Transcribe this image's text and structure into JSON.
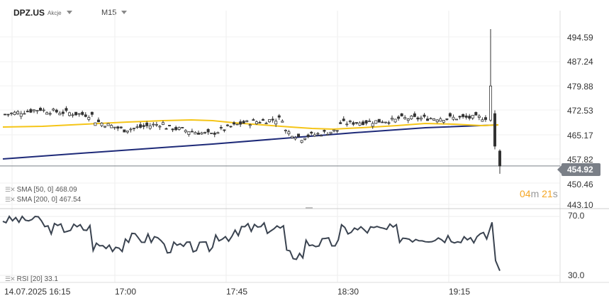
{
  "header": {
    "symbol": "DPZ.US",
    "symbol_type": "Akcje",
    "timeframe": "M15"
  },
  "price_axis": {
    "ticks": [
      "494.59",
      "487.24",
      "479.88",
      "472.53",
      "465.17",
      "457.82",
      "450.46",
      "443.10"
    ],
    "current_price": "454.92"
  },
  "countdown": {
    "minutes": "04",
    "m_unit": "m",
    "seconds": "21",
    "s_unit": "s"
  },
  "indicators": {
    "sma50": "SMA [50,  0]  468.09",
    "sma200": "SMA [200,  0]  467.54",
    "rsi": "RSI [20]  33.1"
  },
  "rsi_axis": {
    "top": "70.0",
    "bottom": "30.0"
  },
  "time_axis": {
    "ticks": [
      "14.07.2025  16:15",
      "17:00",
      "17:45",
      "18:30",
      "19:15"
    ]
  },
  "colors": {
    "sma50": "#f5c518",
    "sma200": "#1e2a78",
    "candles": "#333333",
    "rsi": "#3a4350",
    "price_line": "#7a7f87",
    "countdown": "#f5a623"
  },
  "chart_data": [
    {
      "type": "candlestick",
      "title": "DPZ.US M15",
      "ylim": [
        443.1,
        494.59
      ],
      "series": [
        {
          "name": "SMA [50, 0]",
          "value": 468.09
        },
        {
          "name": "SMA [200, 0]",
          "value": 467.54
        }
      ],
      "last_price": 454.92
    },
    {
      "type": "line",
      "title": "RSI [20]",
      "ylim": [
        30.0,
        70.0
      ],
      "last_value": 33.1
    }
  ]
}
